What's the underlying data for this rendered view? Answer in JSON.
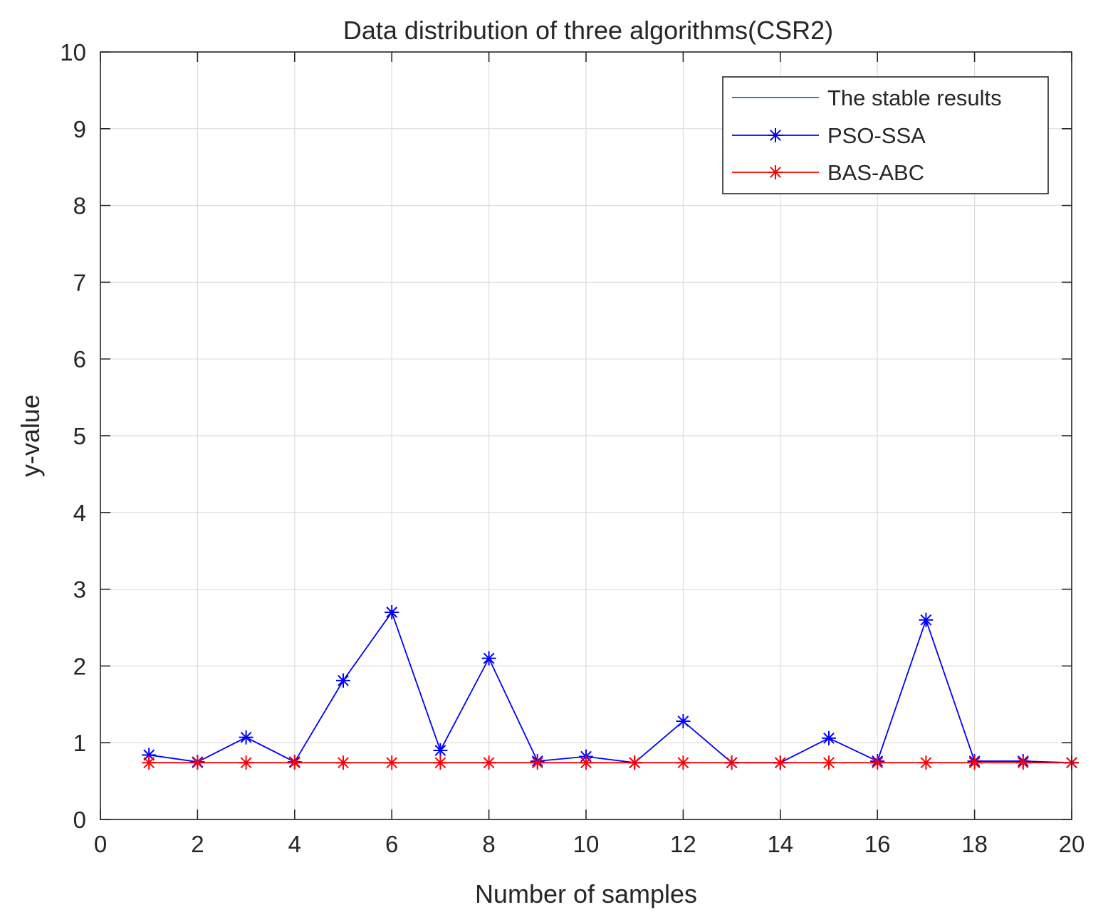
{
  "chart_data": {
    "type": "line",
    "title": "Data distribution of three algorithms(CSR2)",
    "xlabel": "Number of samples",
    "ylabel": "y-value",
    "xlim": [
      0,
      20
    ],
    "ylim": [
      0,
      10
    ],
    "xticks": [
      0,
      2,
      4,
      6,
      8,
      10,
      12,
      14,
      16,
      18,
      20
    ],
    "yticks": [
      0,
      1,
      2,
      3,
      4,
      5,
      6,
      7,
      8,
      9,
      10
    ],
    "grid": true,
    "legend_position": "top-right",
    "x": [
      1,
      2,
      3,
      4,
      5,
      6,
      7,
      8,
      9,
      10,
      11,
      12,
      13,
      14,
      15,
      16,
      17,
      18,
      19,
      20
    ],
    "series": [
      {
        "name": "The stable results",
        "color": "#0072bd",
        "marker": "none",
        "values": [
          0.74,
          0.74,
          0.74,
          0.74,
          0.74,
          0.74,
          0.74,
          0.74,
          0.74,
          0.74,
          0.74,
          0.74,
          0.74,
          0.74,
          0.74,
          0.74,
          0.74,
          0.74,
          0.74,
          0.74
        ]
      },
      {
        "name": "PSO-SSA",
        "color": "#0000ff",
        "marker": "asterisk",
        "values": [
          0.84,
          0.75,
          1.07,
          0.75,
          1.81,
          2.7,
          0.9,
          2.1,
          0.76,
          0.82,
          0.74,
          1.28,
          0.74,
          0.74,
          1.06,
          0.76,
          2.6,
          0.76,
          0.76,
          0.74
        ]
      },
      {
        "name": "BAS-ABC",
        "color": "#ff0000",
        "marker": "asterisk",
        "values": [
          0.74,
          0.74,
          0.74,
          0.74,
          0.74,
          0.74,
          0.74,
          0.74,
          0.74,
          0.74,
          0.74,
          0.74,
          0.74,
          0.74,
          0.74,
          0.74,
          0.74,
          0.74,
          0.74,
          0.74
        ]
      }
    ]
  }
}
